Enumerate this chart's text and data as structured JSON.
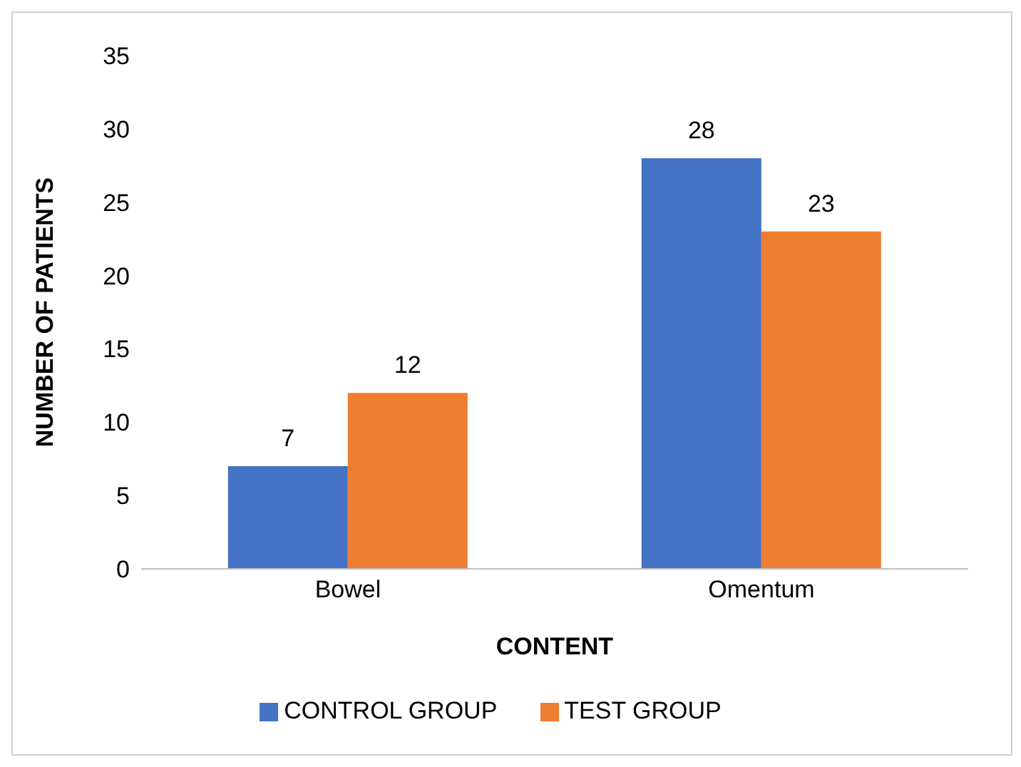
{
  "chart_data": {
    "type": "bar",
    "xlabel": "CONTENT",
    "ylabel": "NUMBER OF PATIENTS",
    "categories": [
      "Bowel",
      "Omentum"
    ],
    "series": [
      {
        "name": "CONTROL GROUP",
        "color": "#4472c4",
        "values": [
          7,
          28
        ]
      },
      {
        "name": "TEST GROUP",
        "color": "#ed7d31",
        "values": [
          12,
          23
        ]
      }
    ],
    "ylim": [
      0,
      35
    ],
    "yticks": [
      0,
      5,
      10,
      15,
      20,
      25,
      30,
      35
    ],
    "grid": false,
    "legend": "bottom",
    "data_labels": true
  }
}
